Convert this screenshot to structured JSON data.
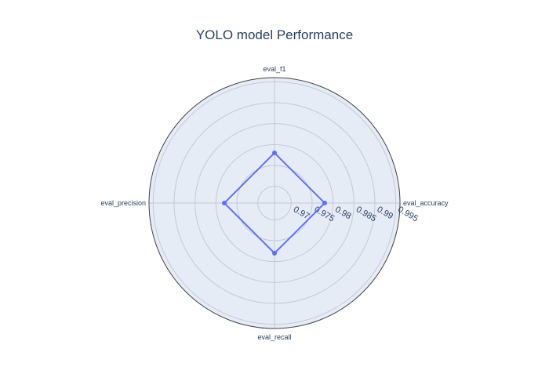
{
  "chart_data": {
    "type": "radar",
    "title": "YOLO model Performance",
    "axes": [
      "eval_accuracy",
      "eval_f1",
      "eval_precision",
      "eval_recall"
    ],
    "series": [
      {
        "values": [
          0.978,
          0.978,
          0.978,
          0.978
        ],
        "color": "#636efa"
      }
    ],
    "radial_range": [
      0.966,
      0.996
    ],
    "radial_ticks": [
      "0.97",
      "0.975",
      "0.98",
      "0.985",
      "0.99",
      "0.995"
    ],
    "radial_tick_values": [
      0.97,
      0.975,
      0.98,
      0.985,
      0.99,
      0.995
    ],
    "colors": {
      "polar_background": "#e5ecf6",
      "grid": "#c3cad6",
      "outline": "#444444",
      "text": "#2a3f5f"
    },
    "grid": true
  }
}
